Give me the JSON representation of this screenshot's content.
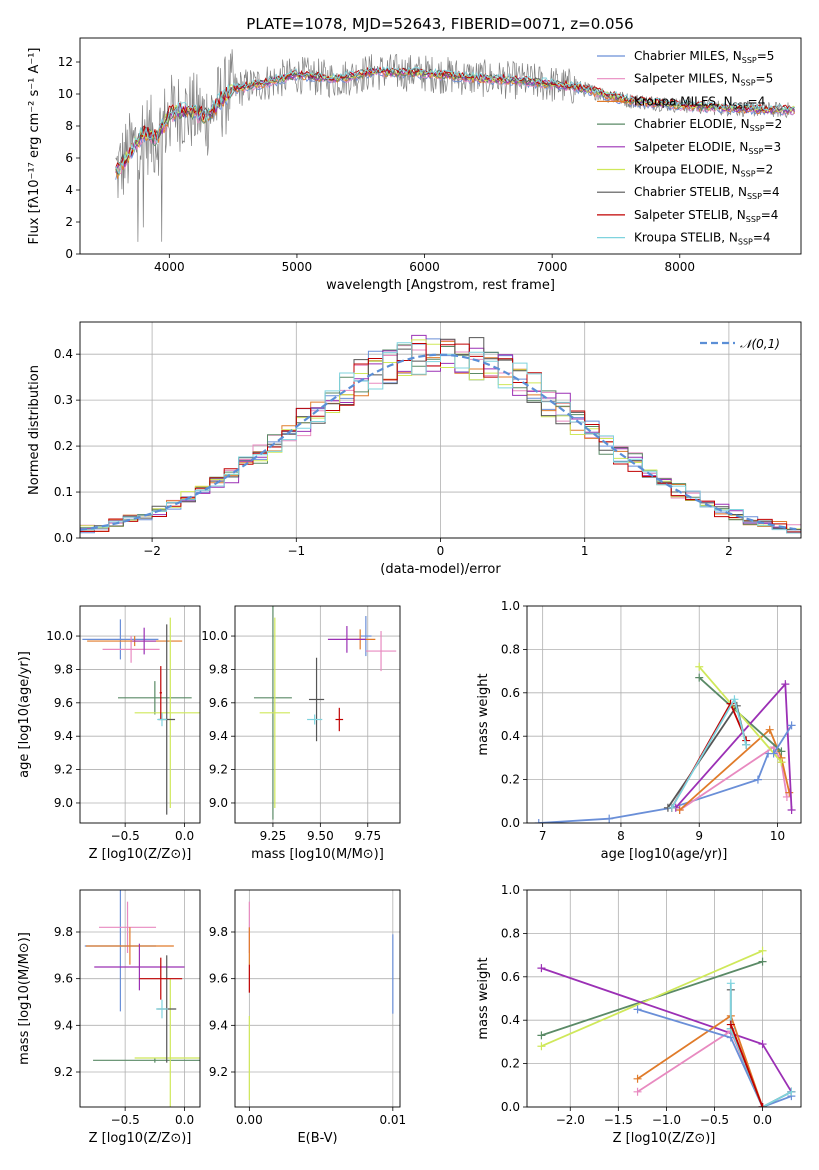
{
  "figure": {
    "title": "PLATE=1078, MJD=52643, FIBERID=0071, z=0.056"
  },
  "colors": {
    "chabrier_miles": "#6a8fd8",
    "salpeter_miles": "#e88ac0",
    "kroupa_miles": "#e07b2a",
    "chabrier_elodie": "#5a8a66",
    "salpeter_elodie": "#9b30b5",
    "kroupa_elodie": "#cfe85a",
    "chabrier_stelib": "#555555",
    "salpeter_stelib": "#c00000",
    "kroupa_stelib": "#7fd3de",
    "data": "#808080",
    "normal": "#5b8fd6",
    "grid": "#b0b0b0"
  },
  "chart_data": [
    {
      "id": "spectrum",
      "type": "line",
      "title": "PLATE=1078, MJD=52643, FIBERID=0071, z=0.056",
      "xlabel": "wavelength [Angstrom, rest frame]",
      "ylabel": "Flux [fλ10⁻¹⁷ erg cm⁻² s⁻¹ A⁻¹]",
      "xlim": [
        3300,
        8950
      ],
      "ylim": [
        0,
        13.5
      ],
      "xticks": [
        4000,
        5000,
        6000,
        7000,
        8000
      ],
      "yticks": [
        0,
        2,
        4,
        6,
        8,
        10,
        12
      ],
      "grid": false,
      "legend_position": "top-right",
      "legend": [
        "Chabrier MILES, N_SSP=5",
        "Salpeter MILES, N_SSP=5",
        "Kroupa MILES, N_SSP=4",
        "Chabrier ELODIE, N_SSP=2",
        "Salpeter ELODIE, N_SSP=3",
        "Kroupa ELODIE, N_SSP=2",
        "Chabrier STELIB, N_SSP=4",
        "Salpeter STELIB, N_SSP=4",
        "Kroupa STELIB, N_SSP=4"
      ],
      "continuum": {
        "x": [
          3600,
          3700,
          3800,
          3900,
          4000,
          4100,
          4200,
          4300,
          4400,
          4500,
          4700,
          5000,
          5300,
          5600,
          6000,
          6400,
          6800,
          7200,
          7600,
          8000,
          8400,
          8800
        ],
        "y": [
          5.2,
          6.5,
          7.6,
          7.2,
          8.7,
          9.0,
          8.8,
          8.6,
          9.6,
          10.3,
          10.6,
          11.2,
          10.9,
          11.4,
          11.3,
          11.0,
          10.8,
          10.4,
          9.6,
          9.3,
          9.1,
          9.0
        ]
      }
    },
    {
      "id": "residuals",
      "type": "step",
      "xlabel": "(data-model)/error",
      "ylabel": "Normed distribution",
      "xlim": [
        -2.5,
        2.5
      ],
      "ylim": [
        0,
        0.47
      ],
      "xticks": [
        -2,
        -1,
        0,
        1,
        2
      ],
      "yticks": [
        0.0,
        0.1,
        0.2,
        0.3,
        0.4
      ],
      "grid": true,
      "legend_position": "top-right",
      "legend": [
        "𝒩(0,1)"
      ],
      "bin_width": 0.1
    },
    {
      "id": "age_vs_z",
      "type": "errorbar",
      "xlabel": "Z [log10(Z/Z⊙)]",
      "ylabel": "age  [log10(age/yr)]",
      "xlim": [
        -0.88,
        0.13
      ],
      "ylim": [
        8.88,
        10.18
      ],
      "xticks": [
        -0.5,
        0.0
      ],
      "yticks": [
        9.0,
        9.2,
        9.4,
        9.6,
        9.8,
        10.0
      ],
      "grid": true,
      "points": [
        {
          "series": "chabrier_miles",
          "x": -0.54,
          "y": 9.98,
          "xerr": 0.32,
          "yerr": 0.12
        },
        {
          "series": "salpeter_miles",
          "x": -0.45,
          "y": 9.92,
          "xerr": 0.24,
          "yerr": 0.08
        },
        {
          "series": "kroupa_miles",
          "x": -0.42,
          "y": 9.97,
          "xerr": 0.4,
          "yerr": 0.03
        },
        {
          "series": "chabrier_elodie",
          "x": -0.25,
          "y": 9.63,
          "xerr": 0.31,
          "yerr": 0.1
        },
        {
          "series": "salpeter_elodie",
          "x": -0.34,
          "y": 9.97,
          "xerr": 0.1,
          "yerr": 0.08
        },
        {
          "series": "kroupa_elodie",
          "x": -0.12,
          "y": 9.54,
          "xerr": 0.3,
          "yerr": 0.57
        },
        {
          "series": "chabrier_stelib",
          "x": -0.15,
          "y": 9.5,
          "xerr": 0.07,
          "yerr": 0.57
        },
        {
          "series": "salpeter_stelib",
          "x": -0.2,
          "y": 9.66,
          "xerr": 0.01,
          "yerr": 0.16
        },
        {
          "series": "kroupa_stelib",
          "x": -0.19,
          "y": 9.5,
          "xerr": 0.04,
          "yerr": 0.04
        }
      ]
    },
    {
      "id": "age_vs_mass",
      "type": "errorbar",
      "xlabel": "mass [log10(M/M⊙)]",
      "ylabel": "",
      "xlim": [
        9.05,
        9.92
      ],
      "ylim": [
        8.88,
        10.18
      ],
      "xticks": [
        9.25,
        9.5,
        9.75
      ],
      "yticks": [
        9.0,
        9.2,
        9.4,
        9.6,
        9.8,
        10.0
      ],
      "grid": true,
      "points": [
        {
          "series": "chabrier_miles",
          "x": 9.74,
          "y": 10.0,
          "xerr": 0.03,
          "yerr": 0.12
        },
        {
          "series": "salpeter_miles",
          "x": 9.82,
          "y": 9.91,
          "xerr": 0.08,
          "yerr": 0.12
        },
        {
          "series": "kroupa_miles",
          "x": 9.71,
          "y": 9.98,
          "xerr": 0.08,
          "yerr": 0.06
        },
        {
          "series": "chabrier_elodie",
          "x": 9.25,
          "y": 9.63,
          "xerr": 0.1,
          "yerr": 0.73
        },
        {
          "series": "salpeter_elodie",
          "x": 9.64,
          "y": 9.98,
          "xerr": 0.1,
          "yerr": 0.08
        },
        {
          "series": "kroupa_elodie",
          "x": 9.26,
          "y": 9.54,
          "xerr": 0.08,
          "yerr": 0.57
        },
        {
          "series": "chabrier_stelib",
          "x": 9.48,
          "y": 9.62,
          "xerr": 0.04,
          "yerr": 0.25
        },
        {
          "series": "salpeter_stelib",
          "x": 9.6,
          "y": 9.5,
          "xerr": 0.02,
          "yerr": 0.07
        },
        {
          "series": "kroupa_stelib",
          "x": 9.47,
          "y": 9.5,
          "xerr": 0.04,
          "yerr": 0.03
        }
      ]
    },
    {
      "id": "weight_vs_age",
      "type": "line",
      "xlabel": "age  [log10(age/yr)]",
      "ylabel": "mass weight",
      "xlim": [
        6.8,
        10.3
      ],
      "ylim": [
        0,
        1.0
      ],
      "xticks": [
        7,
        8,
        9,
        10
      ],
      "yticks": [
        0.0,
        0.2,
        0.4,
        0.6,
        0.8,
        1.0
      ],
      "grid": true,
      "series": [
        {
          "key": "chabrier_miles",
          "x": [
            6.95,
            7.85,
            8.65,
            9.75,
            9.88
          ],
          "y": [
            0.0,
            0.02,
            0.07,
            0.2,
            0.32
          ]
        },
        {
          "key": "salpeter_miles",
          "x": [
            8.75,
            9.95,
            10.05,
            10.12
          ],
          "y": [
            0.06,
            0.35,
            0.28,
            0.12
          ]
        },
        {
          "key": "kroupa_miles",
          "x": [
            8.75,
            9.9,
            10.05,
            10.15
          ],
          "y": [
            0.06,
            0.43,
            0.3,
            0.14
          ]
        },
        {
          "key": "chabrier_elodie",
          "x": [
            9.0,
            10.05
          ],
          "y": [
            0.67,
            0.33
          ]
        },
        {
          "key": "salpeter_elodie",
          "x": [
            8.7,
            10.1,
            10.18
          ],
          "y": [
            0.07,
            0.64,
            0.06
          ]
        },
        {
          "key": "kroupa_elodie",
          "x": [
            9.0,
            10.05
          ],
          "y": [
            0.72,
            0.28
          ]
        },
        {
          "key": "chabrier_stelib",
          "x": [
            8.6,
            9.48,
            9.6
          ],
          "y": [
            0.07,
            0.54,
            0.36
          ]
        },
        {
          "key": "salpeter_stelib",
          "x": [
            8.65,
            9.4,
            9.6
          ],
          "y": [
            0.07,
            0.55,
            0.38
          ]
        },
        {
          "key": "kroupa_stelib",
          "x": [
            8.65,
            9.45,
            9.6
          ],
          "y": [
            0.07,
            0.57,
            0.36
          ]
        },
        {
          "key": "chabrier_miles",
          "x": [
            9.95,
            10.18
          ],
          "y": [
            0.32,
            0.45
          ]
        }
      ]
    },
    {
      "id": "mass_vs_z",
      "type": "errorbar",
      "xlabel": "Z [log10(Z/Z⊙)]",
      "ylabel": "mass [log10(M/M⊙)]",
      "xlim": [
        -0.88,
        0.13
      ],
      "ylim": [
        9.05,
        9.98
      ],
      "xticks": [
        -0.5,
        0.0
      ],
      "yticks": [
        9.2,
        9.4,
        9.6,
        9.8
      ],
      "grid": true,
      "points": [
        {
          "series": "chabrier_miles",
          "x": -0.54,
          "y": 9.74,
          "xerr": 0.3,
          "yerr": 0.28
        },
        {
          "series": "salpeter_miles",
          "x": -0.48,
          "y": 9.82,
          "xerr": 0.24,
          "yerr": 0.11
        },
        {
          "series": "kroupa_miles",
          "x": -0.46,
          "y": 9.74,
          "xerr": 0.37,
          "yerr": 0.08
        },
        {
          "series": "chabrier_elodie",
          "x": -0.25,
          "y": 9.25,
          "xerr": 0.52,
          "yerr": 0.01
        },
        {
          "series": "salpeter_elodie",
          "x": -0.38,
          "y": 9.65,
          "xerr": 0.38,
          "yerr": 0.1
        },
        {
          "series": "kroupa_elodie",
          "x": -0.12,
          "y": 9.26,
          "xerr": 0.3,
          "yerr": 0.34
        },
        {
          "series": "chabrier_stelib",
          "x": -0.15,
          "y": 9.47,
          "xerr": 0.08,
          "yerr": 0.23
        },
        {
          "series": "salpeter_stelib",
          "x": -0.2,
          "y": 9.6,
          "xerr": 0.18,
          "yerr": 0.09
        },
        {
          "series": "kroupa_stelib",
          "x": -0.19,
          "y": 9.47,
          "xerr": 0.05,
          "yerr": 0.04
        }
      ]
    },
    {
      "id": "mass_vs_ebv",
      "type": "errorbar",
      "xlabel": "E(B-V)",
      "ylabel": "",
      "xlim": [
        -0.001,
        0.0105
      ],
      "ylim": [
        9.05,
        9.98
      ],
      "xticks": [
        0.0,
        0.01
      ],
      "yticks": [
        9.2,
        9.4,
        9.6,
        9.8
      ],
      "grid": true,
      "points": [
        {
          "series": "chabrier_miles",
          "x": 0.01,
          "y": 9.62,
          "xerr": 0.0,
          "yerr": 0.17
        },
        {
          "series": "salpeter_miles",
          "x": 0.0,
          "y": 9.82,
          "xerr": 0.0,
          "yerr": 0.11
        },
        {
          "series": "kroupa_miles",
          "x": 0.0,
          "y": 9.74,
          "xerr": 0.0,
          "yerr": 0.08
        },
        {
          "series": "kroupa_elodie",
          "x": 0.0,
          "y": 9.26,
          "xerr": 0.0,
          "yerr": 0.18
        },
        {
          "series": "salpeter_stelib",
          "x": 0.0,
          "y": 9.6,
          "xerr": 0.0,
          "yerr": 0.06
        }
      ]
    },
    {
      "id": "weight_vs_z",
      "type": "line",
      "xlabel": "Z [log10(Z/Z⊙)]",
      "ylabel": "mass weight",
      "xlim": [
        -2.45,
        0.4
      ],
      "ylim": [
        0,
        1.0
      ],
      "xticks": [
        -2.0,
        -1.5,
        -1.0,
        -0.5,
        0.0
      ],
      "yticks": [
        0.0,
        0.2,
        0.4,
        0.6,
        0.8,
        1.0
      ],
      "grid": true,
      "series": [
        {
          "key": "chabrier_elodie",
          "x": [
            -2.3,
            0.0
          ],
          "y": [
            0.33,
            0.67
          ]
        },
        {
          "key": "kroupa_elodie",
          "x": [
            -2.3,
            0.0
          ],
          "y": [
            0.28,
            0.72
          ]
        },
        {
          "key": "salpeter_elodie",
          "x": [
            -2.3,
            0.0,
            0.3
          ],
          "y": [
            0.64,
            0.29,
            0.07
          ]
        },
        {
          "key": "kroupa_miles",
          "x": [
            -1.3,
            -0.33,
            0.0
          ],
          "y": [
            0.13,
            0.42,
            0.0
          ]
        },
        {
          "key": "salpeter_miles",
          "x": [
            -1.3,
            -0.33,
            0.0
          ],
          "y": [
            0.07,
            0.35,
            0.0
          ]
        },
        {
          "key": "chabrier_miles",
          "x": [
            -1.3,
            -0.33,
            0.0,
            0.3
          ],
          "y": [
            0.45,
            0.32,
            0.0,
            0.05
          ]
        },
        {
          "key": "chabrier_stelib",
          "x": [
            -0.33,
            -0.33,
            0.0,
            0.3
          ],
          "y": [
            0.54,
            0.36,
            0.0,
            0.07
          ]
        },
        {
          "key": "kroupa_stelib",
          "x": [
            -0.33,
            -0.33,
            0.0,
            0.3
          ],
          "y": [
            0.57,
            0.36,
            0.0,
            0.07
          ]
        },
        {
          "key": "salpeter_stelib",
          "x": [
            -0.33,
            0.0
          ],
          "y": [
            0.38,
            0.0
          ]
        }
      ]
    }
  ]
}
